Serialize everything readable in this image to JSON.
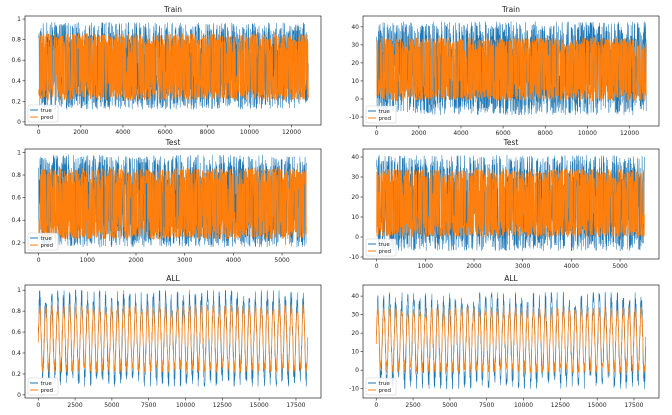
{
  "colors": {
    "true": "#1f77b4",
    "pred": "#ff7f0e"
  },
  "chart_data": [
    {
      "type": "line",
      "title": "Train",
      "xticks": [
        0,
        2000,
        4000,
        6000,
        8000,
        10000,
        12000
      ],
      "yticks": [
        0.0,
        0.2,
        0.4,
        0.6,
        0.8,
        1.0
      ],
      "xlim": [
        -650,
        13400
      ],
      "ylim": [
        -0.03,
        1.03
      ],
      "n": 12800,
      "mode": "noise",
      "true_band": [
        0.12,
        0.97
      ],
      "pred_band": [
        0.21,
        0.86
      ],
      "legend": "lower left",
      "series": [
        {
          "name": "true"
        },
        {
          "name": "pred"
        }
      ]
    },
    {
      "type": "line",
      "title": "Train",
      "xticks": [
        0,
        2000,
        4000,
        6000,
        8000,
        10000,
        12000
      ],
      "yticks": [
        -10,
        0,
        10,
        20,
        30,
        40
      ],
      "xlim": [
        -650,
        13400
      ],
      "ylim": [
        -15,
        46
      ],
      "n": 12800,
      "mode": "noise",
      "true_band": [
        -9,
        43
      ],
      "pred_band": [
        -1,
        34
      ],
      "legend": "lower left",
      "series": [
        {
          "name": "true"
        },
        {
          "name": "pred"
        }
      ]
    },
    {
      "type": "line",
      "title": "Test",
      "xticks": [
        0,
        1000,
        2000,
        3000,
        4000,
        5000
      ],
      "yticks": [
        0.2,
        0.4,
        0.6,
        0.8,
        1.0
      ],
      "xlim": [
        -280,
        5800
      ],
      "ylim": [
        0.11,
        1.03
      ],
      "n": 5500,
      "mode": "noise",
      "true_band": [
        0.16,
        0.98
      ],
      "pred_band": [
        0.23,
        0.86
      ],
      "legend": "lower left",
      "series": [
        {
          "name": "true"
        },
        {
          "name": "pred"
        }
      ]
    },
    {
      "type": "line",
      "title": "Test",
      "xticks": [
        0,
        1000,
        2000,
        3000,
        4000,
        5000
      ],
      "yticks": [
        -10,
        0,
        10,
        20,
        30,
        40
      ],
      "xlim": [
        -280,
        5800
      ],
      "ylim": [
        -11,
        44
      ],
      "n": 5500,
      "mode": "noise",
      "true_band": [
        -7,
        41
      ],
      "pred_band": [
        0,
        34
      ],
      "legend": "lower left",
      "series": [
        {
          "name": "true"
        },
        {
          "name": "pred"
        }
      ]
    },
    {
      "type": "line",
      "title": "ALL",
      "xticks": [
        0,
        2500,
        5000,
        7500,
        10000,
        12500,
        15000,
        17500
      ],
      "yticks": [
        0.0,
        0.2,
        0.4,
        0.6,
        0.8,
        1.0
      ],
      "xlim": [
        -900,
        19200
      ],
      "ylim": [
        -0.03,
        1.05
      ],
      "n": 18300,
      "mode": "periodic",
      "periods": 45,
      "true_band": [
        0.08,
        1.0
      ],
      "pred_band": [
        0.22,
        0.86
      ],
      "legend": "lower left",
      "series": [
        {
          "name": "true"
        },
        {
          "name": "pred"
        }
      ]
    },
    {
      "type": "line",
      "title": "ALL",
      "xticks": [
        0,
        2500,
        5000,
        7500,
        10000,
        12500,
        15000,
        17500
      ],
      "yticks": [
        -10,
        0,
        10,
        20,
        30,
        40
      ],
      "xlim": [
        -900,
        19200
      ],
      "ylim": [
        -15,
        46
      ],
      "n": 18300,
      "mode": "periodic",
      "periods": 45,
      "true_band": [
        -10,
        42
      ],
      "pred_band": [
        -1,
        34
      ],
      "legend": "lower left",
      "series": [
        {
          "name": "true"
        },
        {
          "name": "pred"
        }
      ]
    }
  ]
}
